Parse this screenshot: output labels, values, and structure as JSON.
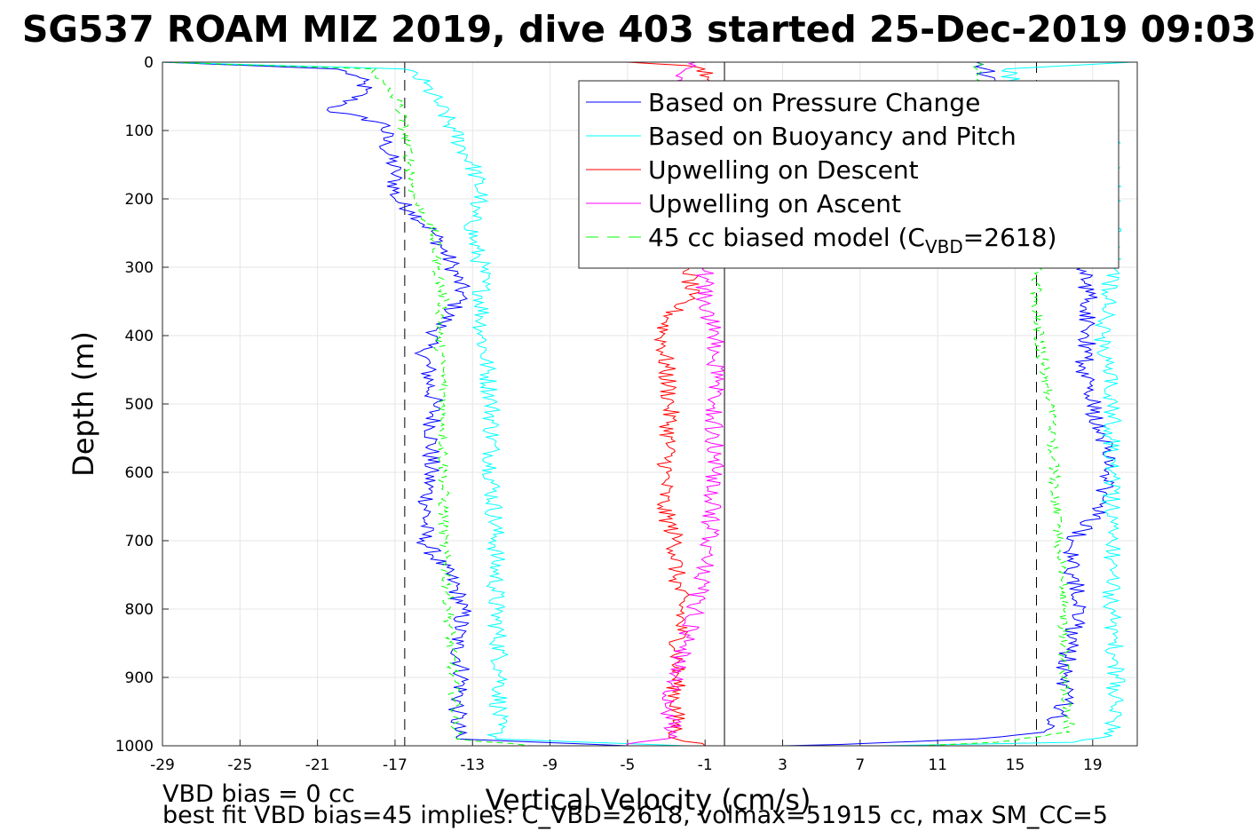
{
  "chart_data": {
    "type": "line",
    "title": "SG537 ROAM MIZ 2019, dive 403 started 25-Dec-2019 09:03",
    "xlabel": "Vertical Velocity (cm/s)",
    "ylabel": "Depth (m)",
    "xlim": [
      -29,
      21.3
    ],
    "ylim": [
      0,
      1000
    ],
    "y_reversed": true,
    "grid": true,
    "legend_position": "top-right",
    "xticks": [
      "-29",
      "-25",
      "-21",
      "-17",
      "-13",
      "-9",
      "-5",
      "-1",
      "3",
      "7",
      "11",
      "15",
      "19"
    ],
    "yticks": [
      "0",
      "100",
      "200",
      "300",
      "400",
      "500",
      "600",
      "700",
      "800",
      "900",
      "1000"
    ],
    "reference_lines": [
      {
        "x": 0,
        "style": "solid",
        "color": "#000000"
      },
      {
        "x": -16.5,
        "style": "dashed",
        "color": "#000000"
      },
      {
        "x": 16.1,
        "style": "dashed",
        "color": "#000000"
      }
    ],
    "series": [
      {
        "name": "Based on Pressure Change",
        "color": "#0000ff",
        "style": "solid",
        "descent": {
          "depth": [
            0,
            10,
            20,
            40,
            60,
            70,
            90,
            120,
            160,
            200,
            220,
            250,
            300,
            340,
            380,
            420,
            500,
            600,
            700,
            760,
            800,
            850,
            900,
            950,
            990,
            1000
          ],
          "v": [
            -29,
            -20,
            -19,
            -18.5,
            -19.5,
            -20.5,
            -17.5,
            -17.5,
            -17,
            -17,
            -16,
            -15,
            -14,
            -13.5,
            -14.5,
            -15.5,
            -15,
            -15.2,
            -15.5,
            -14,
            -13.5,
            -13.8,
            -13.5,
            -13.8,
            -13.8,
            -5
          ]
        },
        "ascent": {
          "depth": [
            1000,
            998,
            990,
            980,
            950,
            900,
            850,
            800,
            750,
            700,
            650,
            600,
            550,
            500,
            450,
            400,
            350,
            300,
            250,
            200,
            150,
            100,
            50,
            20,
            10,
            0
          ],
          "v": [
            3,
            6,
            13,
            16.5,
            17.5,
            17.5,
            17.8,
            18.5,
            18,
            18,
            19.5,
            19.8,
            19.5,
            19,
            18.5,
            18.8,
            18.8,
            18.5,
            18.5,
            18.8,
            14,
            14,
            13.5,
            13.5,
            13.5,
            13
          ]
        }
      },
      {
        "name": "Based on Buoyancy and Pitch",
        "color": "#00ffff",
        "style": "solid",
        "descent": {
          "depth": [
            0,
            10,
            30,
            60,
            100,
            150,
            200,
            210,
            260,
            300,
            400,
            500,
            600,
            700,
            800,
            900,
            990,
            1000
          ],
          "v": [
            -29,
            -16.5,
            -15.5,
            -14.8,
            -14,
            -13,
            -12.5,
            -13,
            -13,
            -12.5,
            -12.5,
            -12,
            -12,
            -11.8,
            -11.8,
            -11.5,
            -11.8,
            -2
          ]
        },
        "ascent": {
          "depth": [
            1000,
            995,
            985,
            970,
            900,
            800,
            700,
            600,
            500,
            400,
            300,
            250,
            200,
            100,
            30,
            10,
            0
          ],
          "v": [
            8,
            18,
            20,
            20,
            20.2,
            20,
            20,
            20,
            20,
            19.5,
            20,
            20,
            20,
            20,
            15,
            14.5,
            21
          ]
        }
      },
      {
        "name": "Upwelling on Descent",
        "color": "#ff0000",
        "style": "solid",
        "descent": {
          "depth": [
            0,
            5,
            10,
            300,
            340,
            360,
            380,
            400,
            500,
            600,
            650,
            700,
            750,
            800,
            900,
            990,
            1000
          ],
          "v": [
            -5,
            -2,
            -1,
            -1.8,
            -1.8,
            -2.5,
            -3,
            -3.2,
            -2.8,
            -3,
            -3.2,
            -2.5,
            -2.5,
            -2.2,
            -2.5,
            -2.5,
            -1
          ]
        }
      },
      {
        "name": "Upwelling on Ascent",
        "color": "#ff00ff",
        "style": "solid",
        "ascent": {
          "depth": [
            1000,
            995,
            990,
            980,
            950,
            900,
            850,
            800,
            700,
            600,
            500,
            400,
            350,
            300,
            20,
            10,
            5,
            0
          ],
          "v": [
            -5,
            -4.5,
            -3,
            -2.5,
            -3,
            -2.5,
            -2,
            -1.5,
            -0.8,
            -0.5,
            -0.5,
            -0.5,
            -1,
            -1,
            -2.5,
            -2,
            -1.5,
            -1.5
          ]
        }
      },
      {
        "name": "45 cc biased model (C",
        "name_sub": "VBD",
        "name_end": "=2618)",
        "color": "#00ff00",
        "style": "dashed",
        "descent": {
          "depth": [
            0,
            10,
            20,
            60,
            100,
            150,
            200,
            250,
            300,
            350,
            400,
            450,
            500,
            600,
            700,
            800,
            900,
            990,
            1000
          ],
          "v": [
            -29,
            -18,
            -18,
            -16.8,
            -16.5,
            -16.2,
            -16,
            -15,
            -14.8,
            -14.5,
            -14.8,
            -14.5,
            -14.5,
            -14.5,
            -14.5,
            -14.2,
            -14,
            -13.8,
            -10
          ]
        },
        "ascent": {
          "depth": [
            1000,
            995,
            980,
            900,
            800,
            700,
            600,
            500,
            450,
            400,
            350,
            300,
            50,
            20,
            10,
            0
          ],
          "v": [
            10,
            14,
            17.8,
            17.5,
            17.5,
            17.3,
            17,
            16.8,
            16.5,
            16.2,
            16,
            16.2,
            13.5,
            13,
            13,
            13
          ]
        }
      }
    ]
  },
  "footer": {
    "line1": "VBD bias = 0 cc",
    "line2": "best fit VBD bias=45 implies: C_VBD=2618, volmax=51915 cc, max SM_CC=5"
  }
}
